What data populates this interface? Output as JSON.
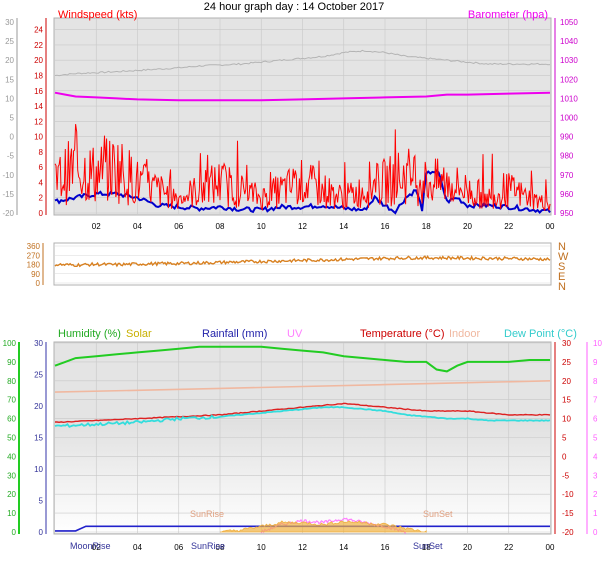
{
  "title": "24 hour graph day : 14 October 2017",
  "x_tick_labels": [
    "02",
    "04",
    "06",
    "08",
    "10",
    "12",
    "14",
    "16",
    "18",
    "20",
    "22",
    "00"
  ],
  "colors": {
    "wind": "#ff0000",
    "gust": "#0000cc",
    "barometer": "#ee00ee",
    "temp_hist": "#b4b4b4",
    "direction": "#d88020",
    "humidity": "#22cc22",
    "temperature": "#dd2020",
    "indoor": "#f0b8a0",
    "dewpoint": "#33dddd",
    "rainfall": "#2222cc",
    "solar": "#f0b040",
    "uv": "#ff80ff",
    "panel_bg": "#e4e4e4"
  },
  "chart_data": [
    {
      "type": "line",
      "label_left": "Windspeed (kts)",
      "label_right": "Barometer (hpa)",
      "y_left_ticks": [
        "24",
        "22",
        "20",
        "18",
        "16",
        "14",
        "12",
        "10",
        "8",
        "6",
        "4",
        "2",
        "0"
      ],
      "y_right_ticks": [
        "1050",
        "1040",
        "1030",
        "1020",
        "1010",
        "1000",
        "990",
        "980",
        "970",
        "960",
        "950"
      ],
      "y_far_left_ticks": [
        "30",
        "25",
        "20",
        "15",
        "10",
        "5",
        "0",
        "-5",
        "-10",
        "-15",
        "-20"
      ],
      "ylim_left": [
        0,
        25
      ],
      "ylim_right": [
        950,
        1050
      ],
      "series": [
        {
          "axis": "right",
          "color_key": "barometer",
          "x": [
            0,
            0.5,
            1,
            2,
            3,
            4,
            6,
            8,
            10,
            12,
            14,
            16,
            18,
            19,
            20,
            22,
            24
          ],
          "values": [
            1013,
            1012,
            1011,
            1010.5,
            1010,
            1009.5,
            1009,
            1009,
            1009,
            1009.5,
            1010,
            1010.5,
            1011,
            1012,
            1012,
            1012.5,
            1013
          ]
        },
        {
          "axis": "far_left",
          "color_key": "temp_hist",
          "x": [
            0,
            1,
            3,
            6,
            7,
            9,
            11,
            12,
            13,
            14,
            15,
            16,
            17,
            18,
            19,
            20,
            21,
            24
          ],
          "values": [
            16,
            16.5,
            17,
            18,
            18.5,
            19,
            20,
            20.5,
            21,
            22,
            22.5,
            22,
            21,
            20.5,
            20,
            19.5,
            19,
            19
          ]
        },
        {
          "axis": "left",
          "color_key": "gust",
          "x": [
            0,
            1,
            2,
            3,
            4,
            5,
            6,
            7,
            8,
            9,
            10,
            11,
            12,
            13,
            14,
            15,
            15.5,
            16,
            16.5,
            17,
            17.5,
            17.8,
            18,
            18.3,
            18.6,
            19,
            19.5,
            20,
            21,
            22,
            23,
            24
          ],
          "values": [
            1.5,
            2,
            2.5,
            2.5,
            2,
            1,
            0.8,
            0.6,
            0.8,
            0.5,
            0.4,
            0.8,
            0.8,
            1,
            0.6,
            0.4,
            2,
            1,
            0.2,
            2,
            3,
            0.5,
            5,
            5.5,
            5.2,
            1.5,
            2,
            1,
            1,
            0.8,
            0.5,
            0.2
          ]
        },
        {
          "axis": "left",
          "color_key": "wind",
          "x": [
            0,
            1,
            2,
            3,
            4,
            5,
            6,
            7,
            8,
            9,
            10,
            11,
            12,
            13,
            14,
            15,
            16,
            17,
            18,
            19,
            20,
            21,
            22,
            23,
            24
          ],
          "values": [
            4,
            6,
            5,
            6,
            4,
            3,
            2,
            3,
            4,
            3,
            2,
            3,
            4,
            3,
            2,
            3,
            4,
            5,
            4,
            4,
            3,
            2,
            3,
            2,
            1
          ]
        }
      ]
    },
    {
      "type": "line",
      "label_right_ticks": [
        "N",
        "W",
        "S",
        "E",
        "N"
      ],
      "y_left_ticks": [
        "360",
        "270",
        "180",
        "90",
        "0"
      ],
      "ylim": [
        0,
        360
      ],
      "series": [
        {
          "name": "direction",
          "color_key": "direction",
          "x": [
            0,
            1,
            2,
            3,
            4,
            5,
            6,
            7,
            8,
            9,
            10,
            11,
            12,
            13,
            14,
            15,
            16,
            17,
            18,
            19,
            20,
            21,
            22,
            23,
            24
          ],
          "values": [
            180,
            175,
            182,
            178,
            185,
            188,
            190,
            195,
            200,
            205,
            210,
            215,
            220,
            225,
            230,
            235,
            240,
            245,
            245,
            245,
            242,
            240,
            238,
            235,
            230
          ]
        }
      ]
    },
    {
      "type": "line",
      "legend": [
        "Humidity (%)",
        "Solar",
        "Rainfall (mm)",
        "UV",
        "Temperature (°C)",
        "Indoor",
        "Dew Point (°C)"
      ],
      "y_left1_ticks": [
        "100",
        "90",
        "80",
        "70",
        "60",
        "50",
        "40",
        "30",
        "20",
        "10",
        "0"
      ],
      "y_left2_ticks": [
        "30",
        "25",
        "20",
        "15",
        "10",
        "5",
        "0"
      ],
      "y_right_ticks": [
        "30",
        "25",
        "20",
        "15",
        "10",
        "5",
        "0",
        "-5",
        "-10",
        "-15",
        "-20"
      ],
      "y_far_right_ticks": [
        "10",
        "9",
        "8",
        "7",
        "6",
        "5",
        "4",
        "3",
        "2",
        "1",
        "0"
      ],
      "ylim_temperature": [
        -20,
        30
      ],
      "ylim_humidity": [
        0,
        100
      ],
      "markers": [
        "MoonRise",
        "SunRise",
        "SunRise",
        "SunSet",
        "SunSet"
      ],
      "series": [
        {
          "name": "Humidity",
          "color_key": "humidity",
          "axis": "humidity",
          "x": [
            0,
            0.5,
            1,
            2,
            3,
            4,
            5,
            6,
            7,
            8,
            9,
            10,
            11,
            12,
            13,
            14,
            15,
            16,
            17,
            18,
            18.5,
            19,
            19.5,
            20,
            21,
            22,
            23,
            24
          ],
          "values": [
            88,
            90,
            92,
            93,
            94,
            95,
            96,
            97,
            98,
            98,
            98,
            98,
            97,
            96,
            95,
            93,
            92,
            91,
            90,
            90,
            86,
            85,
            88,
            90,
            90,
            90,
            91,
            91
          ]
        },
        {
          "name": "Indoor",
          "color_key": "indoor",
          "axis": "temperature",
          "x": [
            0,
            4,
            8,
            12,
            16,
            20,
            24
          ],
          "values": [
            17,
            17.5,
            18,
            18.5,
            19,
            19.5,
            20
          ]
        },
        {
          "name": "Temperature",
          "color_key": "temperature",
          "axis": "temperature",
          "x": [
            0,
            2,
            4,
            6,
            8,
            10,
            12,
            13,
            14,
            15,
            16,
            17,
            18,
            19,
            20,
            21,
            22,
            23,
            24
          ],
          "values": [
            9,
            9.5,
            10,
            10.5,
            11,
            12,
            13,
            13.5,
            14,
            13.5,
            13,
            12.5,
            12,
            12,
            12,
            11.5,
            11,
            11,
            11
          ]
        },
        {
          "name": "Dew Point",
          "color_key": "dewpoint",
          "axis": "temperature",
          "x": [
            0,
            2,
            4,
            6,
            8,
            10,
            12,
            13,
            14,
            15,
            16,
            17,
            18,
            19,
            20,
            21,
            22,
            23,
            24
          ],
          "values": [
            8,
            8.5,
            9,
            10,
            10.5,
            11.5,
            12.5,
            13,
            13,
            12.5,
            12,
            11,
            10.5,
            10,
            10,
            9.5,
            9.5,
            9.5,
            9.5
          ]
        },
        {
          "name": "Rainfall",
          "color_key": "rainfall",
          "axis": "temperature",
          "x": [
            0,
            1,
            1.5,
            2,
            24
          ],
          "values": [
            -19.7,
            -19.7,
            -18.5,
            -18.5,
            -18.5
          ]
        },
        {
          "name": "UV",
          "color_key": "uv",
          "axis": "temperature",
          "x": [
            10,
            11,
            12,
            13,
            14,
            15,
            16,
            17
          ],
          "values": [
            -20,
            -18,
            -17,
            -17.5,
            -16.5,
            -17.5,
            -18.5,
            -20
          ]
        },
        {
          "name": "Solar",
          "color_key": "solar",
          "axis": "temperature",
          "x": [
            8,
            9,
            10,
            11,
            12,
            13,
            14,
            15,
            16,
            17,
            18
          ],
          "values": [
            -20,
            -19.5,
            -18.5,
            -17.5,
            -17.5,
            -18,
            -17.2,
            -17.5,
            -18,
            -19,
            -20
          ]
        }
      ]
    }
  ]
}
